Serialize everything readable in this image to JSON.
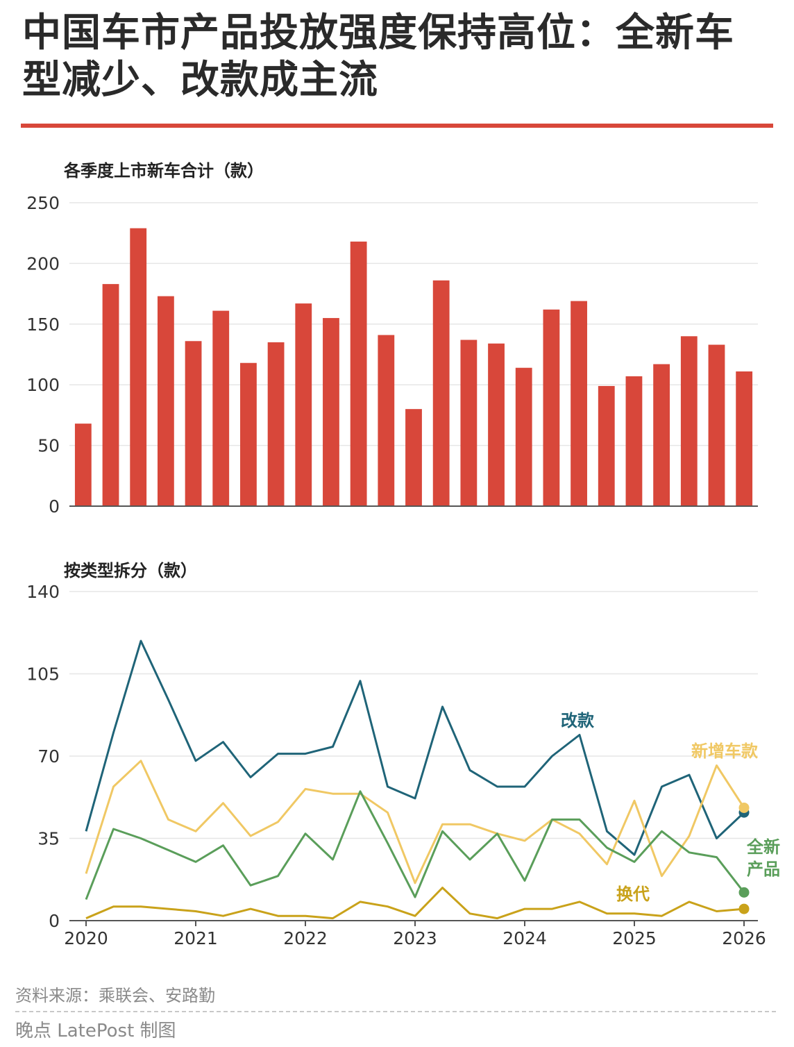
{
  "title": "中国车市产品投放强度保持高位：全新车型减少、改款成主流",
  "colors": {
    "bar": "#d8473a",
    "gaikuan": "#1f6478",
    "xinzeng": "#f0c864",
    "quanxin": "#5a9e5a",
    "huandai": "#c9a21a",
    "grid": "#e6e6e6",
    "axis": "#555555",
    "rule": "#d8473a"
  },
  "chart_data": [
    {
      "type": "bar",
      "title": "各季度上市新车合计（款）",
      "ylim": [
        0,
        250
      ],
      "yticks": [
        0,
        50,
        100,
        150,
        200,
        250
      ],
      "values": [
        68,
        183,
        229,
        173,
        136,
        161,
        118,
        135,
        167,
        155,
        218,
        141,
        80,
        186,
        137,
        134,
        114,
        162,
        169,
        99,
        107,
        117,
        140,
        133,
        111
      ],
      "grid": true
    },
    {
      "type": "line",
      "title": "按类型拆分（款）",
      "ylim": [
        0,
        140
      ],
      "yticks": [
        0,
        35,
        70,
        105,
        140
      ],
      "xlim": [
        2020,
        2026
      ],
      "xticks": [
        "2020",
        "2021",
        "2022",
        "2023",
        "2024",
        "2025",
        "2026"
      ],
      "x": [
        2020,
        2020.25,
        2020.5,
        2020.75,
        2021,
        2021.25,
        2021.5,
        2021.75,
        2022,
        2022.25,
        2022.5,
        2022.75,
        2023,
        2023.25,
        2023.5,
        2023.75,
        2024,
        2024.25,
        2024.5,
        2024.75,
        2025,
        2025.25,
        2025.5,
        2025.75,
        2026
      ],
      "series": [
        {
          "name": "改款",
          "color_key": "gaikuan",
          "values": [
            38,
            80,
            119,
            94,
            68,
            76,
            61,
            71,
            71,
            74,
            102,
            57,
            52,
            91,
            64,
            57,
            57,
            70,
            79,
            38,
            28,
            57,
            62,
            35,
            46
          ]
        },
        {
          "name": "新增车款",
          "color_key": "xinzeng",
          "values": [
            20,
            57,
            68,
            43,
            38,
            50,
            36,
            42,
            56,
            54,
            54,
            46,
            16,
            41,
            41,
            37,
            34,
            43,
            37,
            24,
            51,
            19,
            36,
            66,
            48
          ]
        },
        {
          "name": "全新产品",
          "color_key": "quanxin",
          "values": [
            9,
            39,
            35,
            30,
            25,
            32,
            15,
            19,
            37,
            26,
            55,
            33,
            10,
            38,
            26,
            37,
            17,
            43,
            43,
            31,
            25,
            38,
            29,
            27,
            12
          ]
        },
        {
          "name": "换代",
          "color_key": "huandai",
          "values": [
            1,
            6,
            6,
            5,
            4,
            2,
            5,
            2,
            2,
            1,
            8,
            6,
            2,
            14,
            3,
            1,
            5,
            5,
            8,
            3,
            3,
            2,
            8,
            4,
            5
          ]
        }
      ],
      "grid": true
    }
  ],
  "source": "资料来源：乘联会、安路勤",
  "credit": "晚点 LatePost 制图"
}
